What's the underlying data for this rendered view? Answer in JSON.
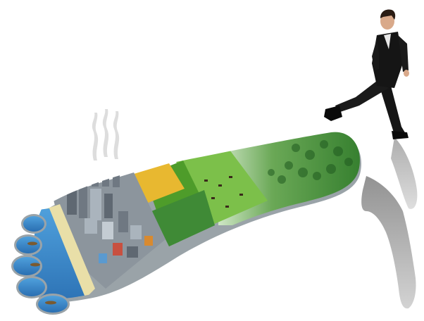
{
  "scene": {
    "subject": "businessman-stepping-off-footprint",
    "colors": {
      "background": "#ffffff",
      "ocean": "#3f8fcf",
      "ocean_deep": "#2a6fb2",
      "sand": "#e9dfa8",
      "city_dark": "#5f6872",
      "city_light": "#aab4bd",
      "wheat": "#e8b830",
      "field_green": "#4e9c2a",
      "pasture": "#7cc04a",
      "meadow": "#3f8a36",
      "forest": "#2f7a2a",
      "forest_dark": "#1f5a1f",
      "foot_edge": "#9aa3a8",
      "suit": "#151515",
      "shadow": "#8a8a8a",
      "smoke": "#d8d8d8"
    }
  }
}
